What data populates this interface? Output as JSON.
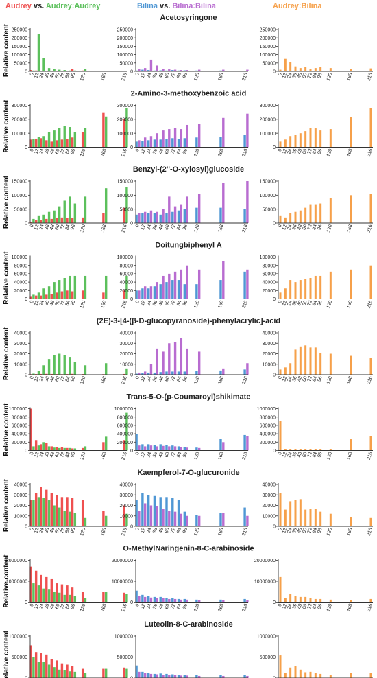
{
  "header": {
    "col1": [
      {
        "text": "Audrey",
        "color": "#ef5050"
      },
      {
        "text": " vs. ",
        "color": "#222222"
      },
      {
        "text": "Audrey:Audrey",
        "color": "#5cc05c"
      }
    ],
    "col2": [
      {
        "text": "Bilina",
        "color": "#4f97d4"
      },
      {
        "text": " vs. ",
        "color": "#222222"
      },
      {
        "text": "Bilina:Bilina",
        "color": "#b86cd0"
      }
    ],
    "col3": [
      {
        "text": "Audrey:Bilina",
        "color": "#f6a04a"
      }
    ]
  },
  "colors": {
    "audrey": "#ef5050",
    "audrey_audrey": "#5cc05c",
    "bilina": "#4f97d4",
    "bilina_bilina": "#b86cd0",
    "audrey_bilina": "#f6a04a"
  },
  "ylabel": "Relative content",
  "x_ticks": [
    "0",
    "12",
    "24",
    "36",
    "48",
    "60",
    "72",
    "84",
    "96",
    "120",
    "168",
    "216"
  ],
  "chart_data": [
    {
      "title": "Acetosyringone",
      "type": "bar",
      "yticks": [
        "0",
        "50000",
        "100000",
        "150000",
        "200000",
        "250000"
      ],
      "ymax": 250000,
      "left": [
        [
          8000,
          5000,
          4000,
          3000,
          2000,
          2000,
          1500,
          2000,
          15000,
          5000,
          3000,
          2000
        ],
        [
          5000,
          225000,
          80000,
          20000,
          15000,
          10000,
          8000,
          5000,
          5000,
          15000,
          2000,
          2000
        ]
      ],
      "mid": [
        [
          5000,
          10000,
          8000,
          5000,
          6000,
          5000,
          8000,
          5000,
          6000,
          5000,
          5000,
          3000
        ],
        [
          12000,
          20000,
          70000,
          35000,
          15000,
          12000,
          10000,
          8000,
          8000,
          10000,
          10000,
          10000
        ]
      ],
      "right": [
        10000,
        75000,
        55000,
        30000,
        20000,
        25000,
        15000,
        20000,
        25000,
        20000,
        15000,
        18000
      ]
    },
    {
      "title": "2-Amino-3-methoxybenzoic acid",
      "type": "bar",
      "yticks": [
        "0",
        "100000",
        "200000",
        "300000"
      ],
      "ymax": 300000,
      "left": [
        [
          55000,
          60000,
          65000,
          50000,
          40000,
          50000,
          55000,
          60000,
          70000,
          110000,
          250000,
          200000
        ],
        [
          60000,
          75000,
          80000,
          110000,
          120000,
          140000,
          150000,
          145000,
          110000,
          140000,
          220000,
          280000
        ]
      ],
      "mid": [
        [
          40000,
          45000,
          50000,
          55000,
          55000,
          60000,
          65000,
          60000,
          65000,
          70000,
          75000,
          90000
        ],
        [
          50000,
          70000,
          80000,
          100000,
          120000,
          130000,
          140000,
          130000,
          160000,
          165000,
          210000,
          240000
        ]
      ],
      "right": [
        40000,
        55000,
        80000,
        90000,
        100000,
        115000,
        140000,
        135000,
        120000,
        130000,
        215000,
        280000
      ]
    },
    {
      "title": "Benzyl-(2''-O-xylosyl)glucoside",
      "type": "bar",
      "yticks": [
        "0",
        "50000",
        "100000",
        "150000"
      ],
      "ymax": 150000,
      "left": [
        [
          5000,
          10000,
          12000,
          15000,
          15000,
          18000,
          20000,
          18000,
          18000,
          20000,
          35000,
          55000
        ],
        [
          15000,
          25000,
          30000,
          40000,
          45000,
          60000,
          80000,
          95000,
          70000,
          95000,
          125000,
          130000
        ]
      ],
      "mid": [
        [
          30000,
          35000,
          35000,
          35000,
          30000,
          35000,
          40000,
          45000,
          50000,
          55000,
          55000,
          50000
        ],
        [
          35000,
          40000,
          45000,
          40000,
          50000,
          95000,
          60000,
          65000,
          95000,
          105000,
          145000,
          150000
        ]
      ],
      "right": [
        25000,
        20000,
        35000,
        40000,
        45000,
        55000,
        65000,
        65000,
        70000,
        90000,
        100000,
        105000
      ]
    },
    {
      "title": "Doitungbiphenyl A",
      "type": "bar",
      "yticks": [
        "0",
        "20000",
        "40000",
        "60000",
        "80000",
        "100000"
      ],
      "ymax": 100000,
      "left": [
        [
          5000,
          8000,
          8000,
          10000,
          12000,
          15000,
          18000,
          20000,
          18000,
          20000,
          15000,
          20000
        ],
        [
          10000,
          15000,
          25000,
          30000,
          40000,
          45000,
          50000,
          55000,
          55000,
          55000,
          55000,
          55000
        ]
      ],
      "mid": [
        [
          20000,
          25000,
          25000,
          30000,
          35000,
          40000,
          45000,
          45000,
          35000,
          35000,
          45000,
          65000
        ],
        [
          20000,
          30000,
          30000,
          40000,
          55000,
          60000,
          65000,
          70000,
          80000,
          70000,
          90000,
          70000
        ]
      ],
      "right": [
        15000,
        25000,
        45000,
        40000,
        45000,
        48000,
        50000,
        55000,
        55000,
        65000,
        70000,
        80000
      ]
    },
    {
      "title": "(2E)-3-[4-(β-D-glucopyranoside)-phenylacrylic]-acid",
      "type": "bar",
      "yticks": [
        "0",
        "10000",
        "20000",
        "30000",
        "40000"
      ],
      "ymax": 40000,
      "left": [
        [
          500,
          600,
          700,
          800,
          700,
          600,
          500,
          600,
          800,
          600,
          500,
          700
        ],
        [
          1000,
          3500,
          9000,
          15000,
          19000,
          20000,
          19000,
          17000,
          12000,
          9000,
          11000,
          6000
        ]
      ],
      "mid": [
        [
          1000,
          1500,
          2000,
          2000,
          2500,
          3000,
          3000,
          3000,
          3000,
          3500,
          4000,
          5000
        ],
        [
          2000,
          3000,
          10000,
          25000,
          22000,
          30000,
          31000,
          35000,
          25000,
          22000,
          6000,
          11000
        ]
      ],
      "right": [
        5000,
        7000,
        11000,
        24000,
        27000,
        28000,
        26000,
        26000,
        21000,
        20000,
        18000,
        16000
      ]
    },
    {
      "title": "Trans-5-O-(p-Coumaroyl)shikimate",
      "type": "bar",
      "yticks": [
        "0",
        "200000",
        "400000",
        "600000",
        "800000",
        "1000000"
      ],
      "ymax": 1000000,
      "left": [
        [
          1000000,
          250000,
          150000,
          180000,
          100000,
          80000,
          80000,
          60000,
          50000,
          60000,
          200000,
          250000
        ],
        [
          100000,
          120000,
          200000,
          100000,
          70000,
          60000,
          60000,
          60000,
          50000,
          100000,
          330000,
          900000
        ]
      ],
      "mid": [
        [
          400000,
          150000,
          150000,
          130000,
          150000,
          130000,
          120000,
          100000,
          80000,
          70000,
          280000,
          370000
        ],
        [
          120000,
          100000,
          120000,
          100000,
          110000,
          100000,
          100000,
          80000,
          70000,
          60000,
          200000,
          350000
        ]
      ],
      "right": [
        700000,
        40000,
        30000,
        30000,
        30000,
        30000,
        30000,
        30000,
        30000,
        30000,
        270000,
        350000
      ]
    },
    {
      "title": "Kaempferol-7-O-glucuronide",
      "type": "bar",
      "yticks": [
        "0",
        "10000",
        "20000",
        "30000",
        "40000"
      ],
      "ymax": 40000,
      "left": [
        [
          25000,
          32000,
          38000,
          35000,
          32000,
          30000,
          28000,
          28000,
          27000,
          25000,
          15000,
          20000
        ],
        [
          25000,
          28000,
          27000,
          25000,
          20000,
          18000,
          15000,
          14000,
          13000,
          8000,
          10000,
          12000
        ]
      ],
      "mid": [
        [
          25000,
          32000,
          30000,
          29000,
          28000,
          28000,
          27000,
          25000,
          14000,
          11000,
          13000,
          18000
        ],
        [
          15000,
          22000,
          20000,
          19000,
          17000,
          15000,
          14000,
          12000,
          10000,
          10000,
          13000,
          10000
        ]
      ],
      "right": [
        32000,
        16000,
        24000,
        25000,
        26000,
        16000,
        17000,
        17000,
        14000,
        12000,
        9000,
        8000
      ]
    },
    {
      "title": "O-MethylNaringenin-8-C-arabinoside",
      "type": "bar",
      "yticks": [
        "0",
        "10000000",
        "20000000"
      ],
      "ymax": 20000000,
      "left": [
        [
          17000000,
          15000000,
          13000000,
          12000000,
          11000000,
          9000000,
          8500000,
          8000000,
          7000000,
          5000000,
          5000000,
          4500000
        ],
        [
          9000000,
          8000000,
          6500000,
          6000000,
          5000000,
          4500000,
          3500000,
          3500000,
          3000000,
          2000000,
          5000000,
          4000000
        ]
      ],
      "mid": [
        [
          5500000,
          3500000,
          3000000,
          2500000,
          2500000,
          2000000,
          2000000,
          1500000,
          1500000,
          1200000,
          1200000,
          1500000
        ],
        [
          3000000,
          2500000,
          2200000,
          2000000,
          1800000,
          1500000,
          1500000,
          1200000,
          1200000,
          1000000,
          1000000,
          1000000
        ]
      ],
      "right": [
        12000000,
        2000000,
        4000000,
        3000000,
        2500000,
        2500000,
        2000000,
        1500000,
        1500000,
        1200000,
        1000000,
        1500000
      ]
    },
    {
      "title": "Luteolin-8-C-arabinoside",
      "type": "bar",
      "yticks": [
        "0",
        "500000",
        "1000000"
      ],
      "ymax": 1000000,
      "left": [
        [
          780000,
          620000,
          600000,
          560000,
          450000,
          420000,
          350000,
          320000,
          280000,
          220000,
          220000,
          250000
        ],
        [
          500000,
          380000,
          380000,
          320000,
          260000,
          200000,
          180000,
          160000,
          150000,
          130000,
          220000,
          220000
        ]
      ],
      "mid": [
        [
          300000,
          150000,
          120000,
          100000,
          110000,
          100000,
          90000,
          80000,
          80000,
          70000,
          80000,
          80000
        ],
        [
          150000,
          120000,
          100000,
          90000,
          80000,
          80000,
          70000,
          60000,
          60000,
          50000,
          50000,
          50000
        ]
      ],
      "right": [
        540000,
        120000,
        250000,
        280000,
        200000,
        140000,
        150000,
        120000,
        100000,
        80000,
        120000,
        120000
      ]
    }
  ]
}
